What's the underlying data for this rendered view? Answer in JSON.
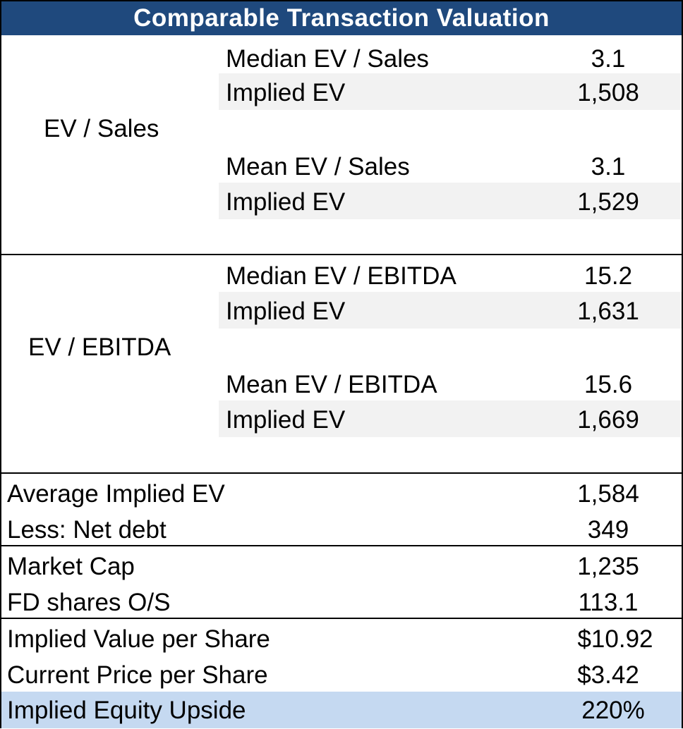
{
  "title": "Comparable Transaction Valuation",
  "sales_section": {
    "label": "EV / Sales",
    "rows": [
      {
        "label": "Median EV / Sales",
        "value": "3.1"
      },
      {
        "label": "Implied EV",
        "value": "1,508"
      },
      {
        "label": "Mean EV / Sales",
        "value": "3.1"
      },
      {
        "label": "Implied EV",
        "value": "1,529"
      }
    ]
  },
  "ebitda_section": {
    "label": "EV / EBITDA",
    "rows": [
      {
        "label": "Median EV / EBITDA",
        "value": "15.2"
      },
      {
        "label": "Implied EV",
        "value": "1,631"
      },
      {
        "label": "Mean EV / EBITDA",
        "value": "15.6"
      },
      {
        "label": "Implied EV",
        "value": "1,669"
      }
    ]
  },
  "summary": [
    {
      "label": "Average Implied EV",
      "value": "1,584"
    },
    {
      "label": "Less: Net debt",
      "value": "349"
    },
    {
      "label": "Market Cap",
      "value": "1,235"
    },
    {
      "label": "FD shares O/S",
      "value": "113.1"
    },
    {
      "label": "Implied Value per Share",
      "value": "$10.92"
    },
    {
      "label": "Current Price per Share",
      "value": "$3.42"
    },
    {
      "label": "Implied Equity Upside",
      "value": "220%"
    }
  ]
}
